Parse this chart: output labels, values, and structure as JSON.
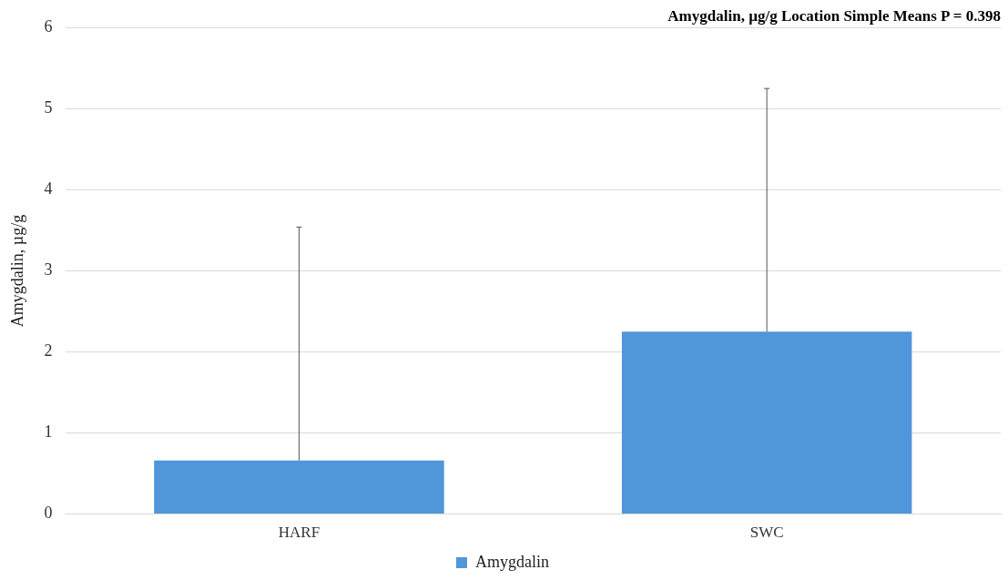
{
  "chart_data": {
    "type": "bar",
    "title": "Amygdalin, µg/g Location Simple Means P = 0.398",
    "ylabel": "Amygdalin, µg/g",
    "categories": [
      "HARF",
      "SWC"
    ],
    "series": [
      {
        "name": "Amygdalin",
        "color": "#5096db",
        "values": [
          0.66,
          2.25
        ],
        "errors": [
          [
            0.66,
            3.54
          ],
          [
            2.25,
            5.25
          ]
        ]
      }
    ],
    "ylim": [
      0,
      6
    ],
    "yticks": [
      0,
      1,
      2,
      3,
      4,
      5,
      6
    ],
    "grid": "y",
    "legend": "bottom"
  }
}
